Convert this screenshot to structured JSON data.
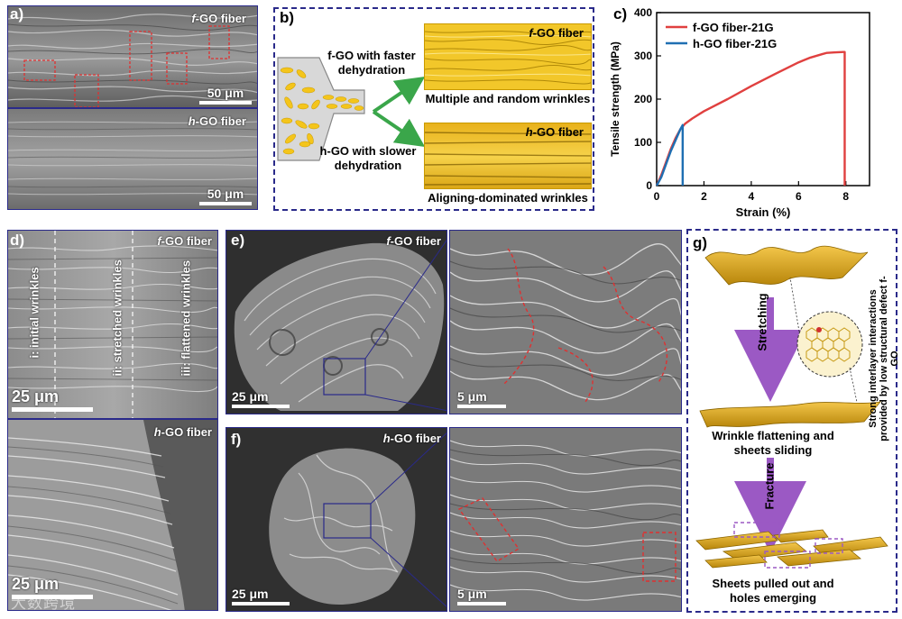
{
  "panels": {
    "a": {
      "letter": "a)",
      "top_label_prefix": "f",
      "top_label_suffix": "-GO fiber",
      "top_scale": "50 μm",
      "bottom_label_prefix": "h",
      "bottom_label_suffix": "-GO fiber",
      "bottom_scale": "50 μm"
    },
    "b": {
      "letter": "b)",
      "faster": "f-GO with faster dehydration",
      "slower": "h-GO with slower dehydration",
      "top_label_prefix": "f",
      "top_label_suffix": "-GO fiber",
      "top_caption": "Multiple and random wrinkles",
      "bottom_label_prefix": "h",
      "bottom_label_suffix": "-GO fiber",
      "bottom_caption": "Aligning-dominated wrinkles"
    },
    "c": {
      "letter": "c)"
    },
    "d": {
      "letter": "d)",
      "top_label_prefix": "f",
      "top_label_suffix": "-GO fiber",
      "zone_i": "i: initial wrinkles",
      "zone_ii": "ii: stretched wrinkles",
      "zone_iii": "iii: flattened wrinkles",
      "top_scale": "25 μm",
      "bottom_label_prefix": "h",
      "bottom_label_suffix": "-GO fiber",
      "bottom_scale": "25 μm"
    },
    "e": {
      "letter": "e)",
      "label_prefix": "f",
      "label_suffix": "-GO fiber",
      "scale_left": "25 μm",
      "scale_right": "5 μm"
    },
    "f": {
      "letter": "f)",
      "label_prefix": "h",
      "label_suffix": "-GO fiber",
      "scale_left": "25 μm",
      "scale_right": "5 μm"
    },
    "g": {
      "letter": "g)",
      "stretching": "Stretching",
      "fracture": "Fracture",
      "interlayer": "Strong interlayer interactions provided by low structural defect f-GO",
      "step1": "Wrinkle flattening and sheets sliding",
      "step2": "Sheets pulled out and holes emerging"
    }
  },
  "watermark": "大数跨境",
  "colors": {
    "f_series": "#e0403f",
    "h_series": "#1f6fb2",
    "frame": "#2a2a8a",
    "arrow": "#9b59c4"
  },
  "chart_data": {
    "type": "line",
    "xlabel": "Strain (%)",
    "ylabel": "Tensile strength (MPa)",
    "xlim": [
      0,
      9
    ],
    "ylim": [
      0,
      400
    ],
    "xticks": [
      0,
      2,
      4,
      6,
      8
    ],
    "yticks": [
      0,
      100,
      200,
      300,
      400
    ],
    "legend_position": "top-left",
    "series": [
      {
        "name": "f-GO fiber-21G",
        "color": "#e0403f",
        "x": [
          0,
          0.2,
          0.4,
          0.6,
          0.8,
          1.0,
          1.2,
          1.5,
          2.0,
          3.0,
          4.0,
          5.0,
          6.0,
          6.5,
          7.0,
          7.2,
          7.5,
          7.9,
          7.95,
          7.95
        ],
        "y": [
          0,
          25,
          55,
          85,
          110,
          130,
          143,
          155,
          172,
          200,
          230,
          258,
          285,
          296,
          304,
          307,
          308,
          309,
          309,
          0
        ]
      },
      {
        "name": "h-GO fiber-21G",
        "color": "#1f6fb2",
        "x": [
          0,
          0.2,
          0.4,
          0.6,
          0.8,
          1.0,
          1.1,
          1.1
        ],
        "y": [
          0,
          20,
          50,
          80,
          105,
          130,
          140,
          0
        ]
      }
    ]
  }
}
